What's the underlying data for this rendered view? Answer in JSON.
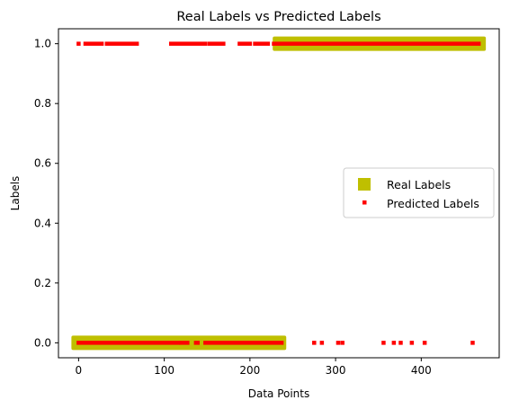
{
  "chart_data": {
    "type": "scatter",
    "title": "Real Labels vs Predicted Labels",
    "xlabel": "Data Points",
    "ylabel": "Labels",
    "xlim": [
      -23.5,
      491
    ],
    "ylim": [
      -0.05,
      1.05
    ],
    "x_ticks": [
      0,
      100,
      200,
      300,
      400
    ],
    "x_tick_labels": [
      "0",
      "100",
      "200",
      "300",
      "400"
    ],
    "y_ticks": [
      0.0,
      0.2,
      0.4,
      0.6,
      0.8,
      1.0
    ],
    "y_tick_labels": [
      "0.0",
      "0.2",
      "0.4",
      "0.6",
      "0.8",
      "1.0"
    ],
    "grid": false,
    "legend_position": "center-right",
    "series": [
      {
        "name": "Real Labels",
        "color": "#bfbf00",
        "marker": "square",
        "segments": [
          {
            "x_start": 0,
            "x_end": 234,
            "y": 0
          },
          {
            "x_start": 235,
            "x_end": 467,
            "y": 1
          }
        ]
      },
      {
        "name": "Predicted Labels",
        "color": "#ff0000",
        "marker": "square-small",
        "y0_segments": [
          [
            0,
            116
          ],
          [
            120,
            127
          ],
          [
            137,
            139
          ],
          [
            148,
            237
          ]
        ],
        "y0_points": [
          275,
          284,
          303,
          308,
          356,
          368,
          376,
          389,
          404,
          460
        ],
        "y1_segments": [
          [
            8,
            27
          ],
          [
            33,
            68
          ],
          [
            108,
            148
          ],
          [
            153,
            169
          ],
          [
            188,
            200
          ],
          [
            206,
            221
          ],
          [
            228,
            467
          ]
        ],
        "y1_points": [
          0
        ]
      }
    ]
  }
}
